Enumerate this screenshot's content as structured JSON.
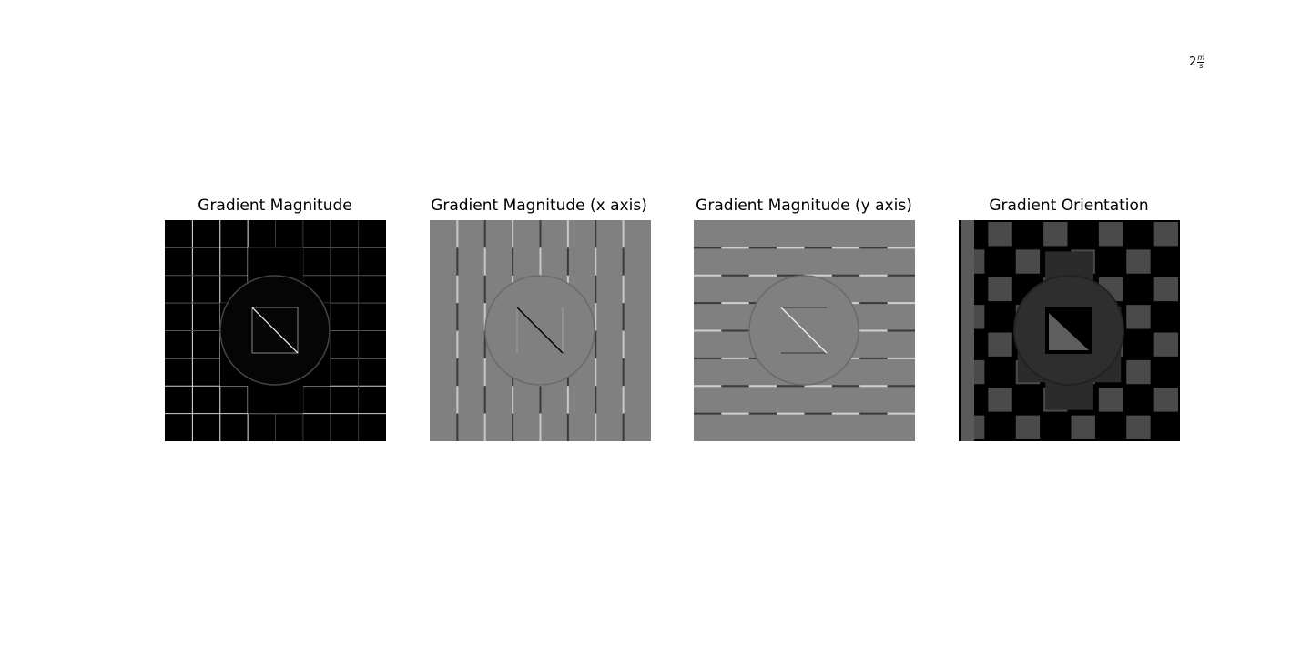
{
  "annotation": {
    "prefix": "2",
    "numerator": "m",
    "denominator": "s"
  },
  "panels": [
    {
      "id": "magnitude",
      "title": "Gradient Magnitude"
    },
    {
      "id": "x_axis",
      "title": "Gradient Magnitude (x axis)"
    },
    {
      "id": "y_axis",
      "title": "Gradient Magnitude (y axis)"
    },
    {
      "id": "orientation",
      "title": "Gradient Orientation"
    }
  ],
  "colors": {
    "background": "#ffffff",
    "black": "#000000",
    "mid_gray": "#808080",
    "dark_gray": "#2b2b2b",
    "light_gray": "#c8c8c8",
    "white": "#ffffff"
  }
}
